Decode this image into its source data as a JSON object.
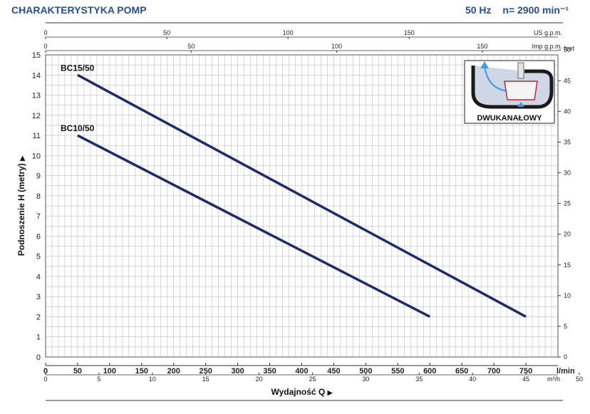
{
  "header": {
    "title": "CHARAKTERYSTYKA POMP",
    "frequency": "50 Hz",
    "speed": "n= 2900 min⁻¹"
  },
  "inset": {
    "label": "DWUKANAŁOWY"
  },
  "colors": {
    "curve": "#1f2a6b",
    "grid": "#b0b0b0",
    "text": "#2a4f8c"
  },
  "chart_data": {
    "type": "line",
    "xlabel": "Wydajność Q",
    "ylabel": "Podnoszenie H (metry)",
    "x_unit": "l/min",
    "xlim": [
      0,
      800
    ],
    "ylim": [
      0,
      15
    ],
    "x_ticks": [
      0,
      50,
      100,
      150,
      200,
      250,
      300,
      350,
      400,
      450,
      500,
      550,
      600,
      650,
      700,
      750
    ],
    "y_ticks": [
      0,
      1,
      2,
      3,
      4,
      5,
      6,
      7,
      8,
      9,
      10,
      11,
      12,
      13,
      14,
      15
    ],
    "grid": true,
    "secondary_axes": {
      "top_us": {
        "unit": "US g.p.m.",
        "ticks": [
          0,
          50,
          100,
          150
        ]
      },
      "top_imp": {
        "unit": "Imp g.p.m.",
        "ticks": [
          0,
          50,
          100,
          150
        ]
      },
      "bottom_m3h": {
        "unit": "m³/h",
        "ticks": [
          0,
          5,
          10,
          15,
          20,
          25,
          30,
          35,
          40,
          45,
          50
        ]
      },
      "right_feet": {
        "unit": "feet",
        "ticks": [
          0,
          5,
          10,
          15,
          20,
          25,
          30,
          35,
          40,
          45,
          50
        ]
      }
    },
    "series": [
      {
        "name": "BC15/50",
        "points": [
          [
            50,
            14
          ],
          [
            750,
            2
          ]
        ]
      },
      {
        "name": "BC10/50",
        "points": [
          [
            50,
            11
          ],
          [
            600,
            2
          ]
        ]
      }
    ]
  }
}
